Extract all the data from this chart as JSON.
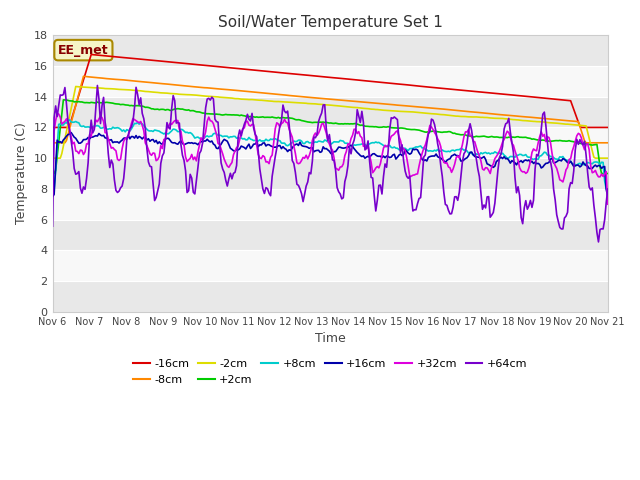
{
  "title": "Soil/Water Temperature Set 1",
  "xlabel": "Time",
  "ylabel": "Temperature (C)",
  "ylim": [
    0,
    18
  ],
  "yticks": [
    0,
    2,
    4,
    6,
    8,
    10,
    12,
    14,
    16,
    18
  ],
  "x_labels": [
    "Nov 6",
    "Nov 7",
    "Nov 8",
    "Nov 9",
    "Nov 10",
    "Nov 11",
    "Nov 12",
    "Nov 13",
    "Nov 14",
    "Nov 15",
    "Nov 16",
    "Nov 17",
    "Nov 18",
    "Nov 19",
    "Nov 20",
    "Nov 21"
  ],
  "annotation": "EE_met",
  "fig_bg": "#ffffff",
  "plot_bg": "#ffffff",
  "band_colors": [
    "#e8e8e8",
    "#f8f8f8"
  ],
  "series_order": [
    "-16cm",
    "-8cm",
    "-2cm",
    "+2cm",
    "+8cm",
    "+16cm",
    "+32cm",
    "+64cm"
  ],
  "series": {
    "-16cm": {
      "color": "#dd0000"
    },
    "-8cm": {
      "color": "#ff8800"
    },
    "-2cm": {
      "color": "#dddd00"
    },
    "+2cm": {
      "color": "#00cc00"
    },
    "+8cm": {
      "color": "#00cccc"
    },
    "+16cm": {
      "color": "#0000aa"
    },
    "+32cm": {
      "color": "#dd00dd"
    },
    "+64cm": {
      "color": "#7700cc"
    }
  }
}
